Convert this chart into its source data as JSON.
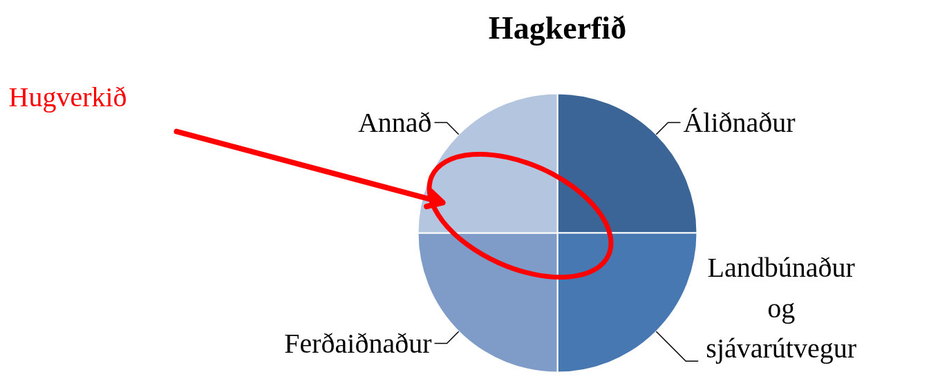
{
  "chart_data": {
    "type": "pie",
    "title": "Hagkerfið",
    "categories": [
      "Áliðnaður",
      "Landbúnaður og sjávarútvegur",
      "Ferðaiðnaður",
      "Annað"
    ],
    "values": [
      25,
      25,
      25,
      25
    ],
    "colors": [
      "#3b6597",
      "#4878b1",
      "#7f9cc8",
      "#b4c5e0"
    ],
    "annotations": [
      "Hugverkið"
    ]
  }
}
